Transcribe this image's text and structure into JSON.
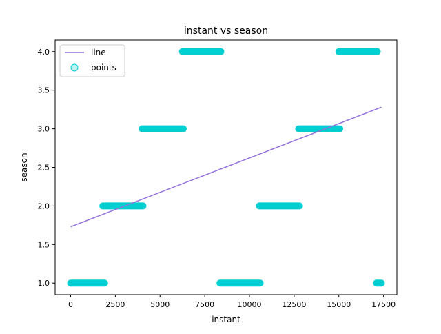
{
  "chart_data": {
    "type": "scatter",
    "title": "instant vs season",
    "xlabel": "instant",
    "ylabel": "season",
    "xlim": [
      -866,
      18245
    ],
    "ylim": [
      0.85,
      4.15
    ],
    "xticks": [
      0,
      2500,
      5000,
      7500,
      10000,
      12500,
      15000,
      17500
    ],
    "xtick_labels": [
      "0",
      "2500",
      "5000",
      "7500",
      "10000",
      "12500",
      "15000",
      "17500"
    ],
    "yticks": [
      1.0,
      1.5,
      2.0,
      2.5,
      3.0,
      3.5,
      4.0
    ],
    "ytick_labels": [
      "1.0",
      "1.5",
      "2.0",
      "2.5",
      "3.0",
      "3.5",
      "4.0"
    ],
    "grid": false,
    "legend": {
      "placement": "top-left",
      "entries": [
        {
          "label": "line",
          "kind": "line",
          "color": "#9370db"
        },
        {
          "label": "points",
          "kind": "marker",
          "color": "#00ced1"
        }
      ]
    },
    "series": [
      {
        "name": "line",
        "kind": "line",
        "color": "#9370db",
        "x": [
          1,
          17379
        ],
        "y": [
          1.73,
          3.28
        ]
      },
      {
        "name": "points",
        "kind": "scatter",
        "color": "#00ced1",
        "segments": [
          {
            "season": 1,
            "x_start": 1,
            "x_end": 1900
          },
          {
            "season": 2,
            "x_start": 1800,
            "x_end": 4050
          },
          {
            "season": 3,
            "x_start": 4000,
            "x_end": 6300
          },
          {
            "season": 4,
            "x_start": 6250,
            "x_end": 8400
          },
          {
            "season": 1,
            "x_start": 8350,
            "x_end": 10600
          },
          {
            "season": 2,
            "x_start": 10550,
            "x_end": 12800
          },
          {
            "season": 3,
            "x_start": 12750,
            "x_end": 15050
          },
          {
            "season": 4,
            "x_start": 15000,
            "x_end": 17150
          },
          {
            "season": 1,
            "x_start": 17100,
            "x_end": 17379
          }
        ]
      }
    ]
  }
}
